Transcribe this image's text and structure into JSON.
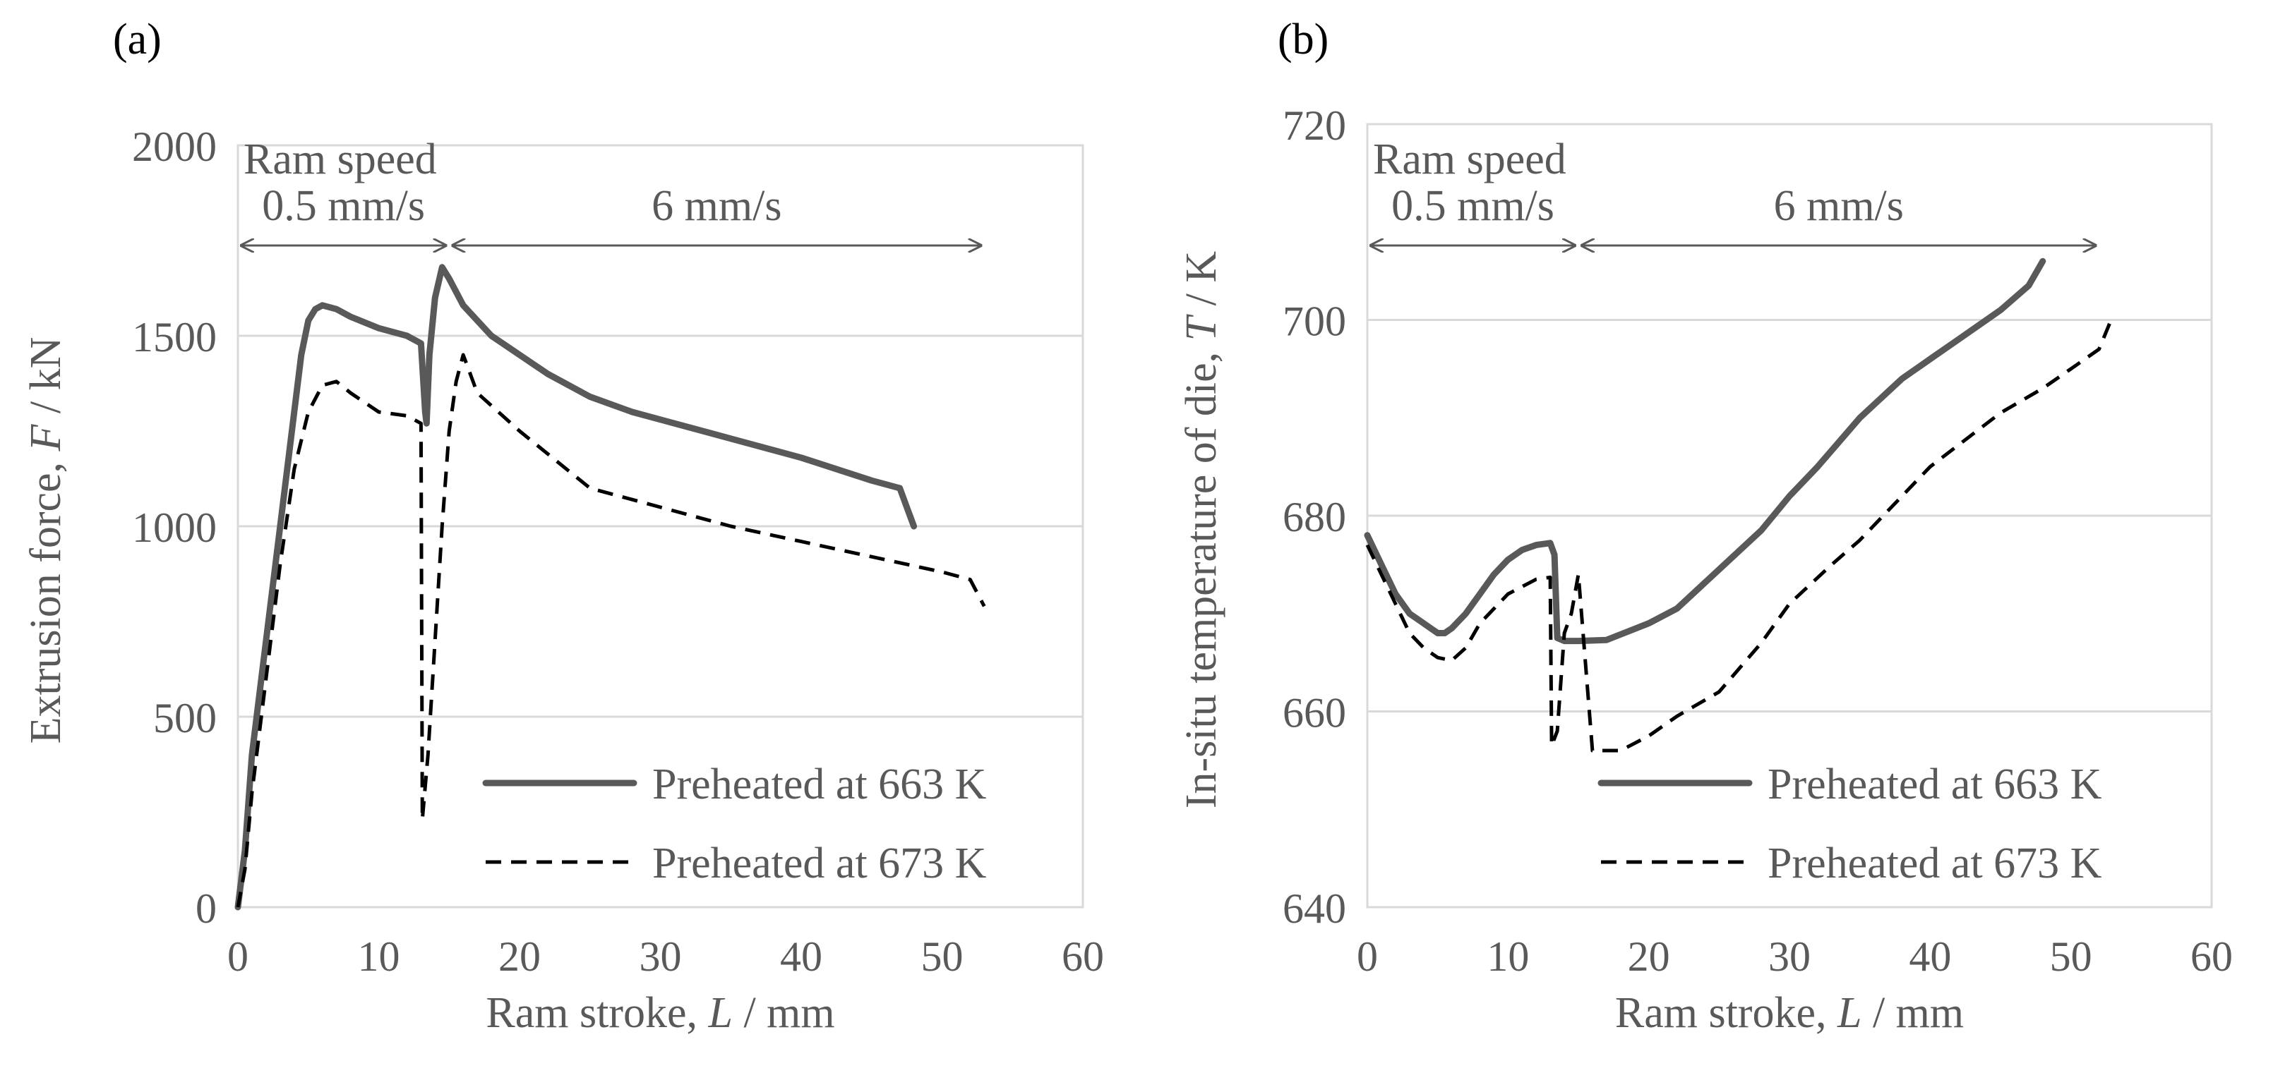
{
  "chart_data": [
    {
      "type": "line",
      "panel_label": "(a)",
      "title": "",
      "xlabel": {
        "pre": "Ram stroke, ",
        "var": "L",
        "post": " / mm"
      },
      "ylabel": {
        "pre": "Extrusion force, ",
        "var": "F",
        "post": " / kN"
      },
      "xlim": [
        0,
        60
      ],
      "ylim": [
        0,
        2000
      ],
      "xticks": [
        0,
        10,
        20,
        30,
        40,
        50,
        60
      ],
      "yticks": [
        0,
        500,
        1000,
        1500,
        2000
      ],
      "grid": "horizontal",
      "legend_position": "bottom-right",
      "annotations": {
        "title": "Ram speed",
        "arrows": [
          {
            "label": "0.5 mm/s",
            "from": 0,
            "to": 15
          },
          {
            "label": "6 mm/s",
            "from": 15,
            "to": 53
          }
        ]
      },
      "series": [
        {
          "name": "Preheated at 663 K",
          "style": "solid",
          "color": "#595959",
          "x": [
            0,
            0.5,
            1,
            2,
            3,
            4,
            4.5,
            5,
            5.5,
            6,
            7,
            8,
            10,
            12,
            13,
            13.3,
            13.4,
            13.6,
            14,
            14.5,
            15,
            16,
            18,
            20,
            22,
            25,
            28,
            30,
            35,
            40,
            45,
            47,
            47.5,
            48
          ],
          "y": [
            0,
            150,
            400,
            700,
            1000,
            1300,
            1450,
            1540,
            1570,
            1580,
            1570,
            1550,
            1520,
            1500,
            1480,
            1300,
            1270,
            1450,
            1600,
            1680,
            1650,
            1580,
            1500,
            1450,
            1400,
            1340,
            1300,
            1280,
            1230,
            1180,
            1120,
            1100,
            1050,
            1000
          ]
        },
        {
          "name": "Preheated at 673 K",
          "style": "dashed",
          "color": "#000000",
          "x": [
            0,
            0.5,
            1,
            2,
            3,
            4,
            5,
            6,
            7,
            8,
            10,
            12,
            13,
            13.1,
            13.5,
            14,
            14.5,
            15,
            15.5,
            16,
            17,
            20,
            25,
            28,
            30,
            35,
            40,
            45,
            50,
            52,
            53
          ],
          "y": [
            0,
            100,
            300,
            600,
            900,
            1150,
            1300,
            1370,
            1380,
            1350,
            1300,
            1290,
            1270,
            230,
            400,
            700,
            1000,
            1250,
            1380,
            1450,
            1350,
            1250,
            1100,
            1070,
            1050,
            1000,
            960,
            920,
            880,
            860,
            790
          ]
        }
      ]
    },
    {
      "type": "line",
      "panel_label": "(b)",
      "title": "",
      "xlabel": {
        "pre": "Ram stroke, ",
        "var": "L",
        "post": " / mm"
      },
      "ylabel": {
        "pre": "In-situ temperature of die, ",
        "var": "T",
        "post": " / K"
      },
      "xlim": [
        0,
        60
      ],
      "ylim": [
        640,
        720
      ],
      "xticks": [
        0,
        10,
        20,
        30,
        40,
        50,
        60
      ],
      "yticks": [
        640,
        660,
        680,
        700,
        720
      ],
      "grid": "horizontal",
      "legend_position": "bottom-right",
      "annotations": {
        "title": "Ram speed",
        "arrows": [
          {
            "label": "0.5 mm/s",
            "from": 0,
            "to": 15
          },
          {
            "label": "6 mm/s",
            "from": 15,
            "to": 52
          }
        ]
      },
      "series": [
        {
          "name": "Preheated at 663 K",
          "style": "solid",
          "color": "#595959",
          "x": [
            0,
            1,
            2,
            3,
            4,
            5,
            5.5,
            6,
            7,
            8,
            9,
            10,
            11,
            12,
            13,
            13.3,
            13.5,
            14,
            15,
            17,
            20,
            22,
            25,
            28,
            30,
            32,
            35,
            38,
            40,
            42,
            45,
            47,
            48
          ],
          "y": [
            678,
            675,
            672,
            670,
            669,
            668,
            668,
            668.5,
            670,
            672,
            674,
            675.5,
            676.5,
            677,
            677.2,
            676,
            667.5,
            667.2,
            667.2,
            667.3,
            669,
            670.5,
            674.5,
            678.5,
            682,
            685,
            690,
            694,
            696,
            698,
            701,
            703.5,
            706
          ]
        },
        {
          "name": "Preheated at 673 K",
          "style": "dashed",
          "color": "#000000",
          "x": [
            0,
            1,
            2,
            3,
            4,
            5,
            6,
            7,
            8,
            10,
            12,
            13,
            13.1,
            13.5,
            14,
            14.5,
            15,
            16,
            18,
            20,
            22,
            25,
            28,
            30,
            33,
            35,
            40,
            45,
            48,
            50,
            52,
            53
          ],
          "y": [
            677,
            674,
            671,
            668,
            666.5,
            665.5,
            665.2,
            666.5,
            669,
            672,
            673.5,
            673.7,
            656.5,
            658,
            668,
            670,
            674,
            656,
            656,
            657.5,
            659.5,
            662,
            667,
            671,
            675,
            677.5,
            685,
            690.5,
            693,
            695,
            697,
            700.5
          ]
        }
      ]
    }
  ]
}
